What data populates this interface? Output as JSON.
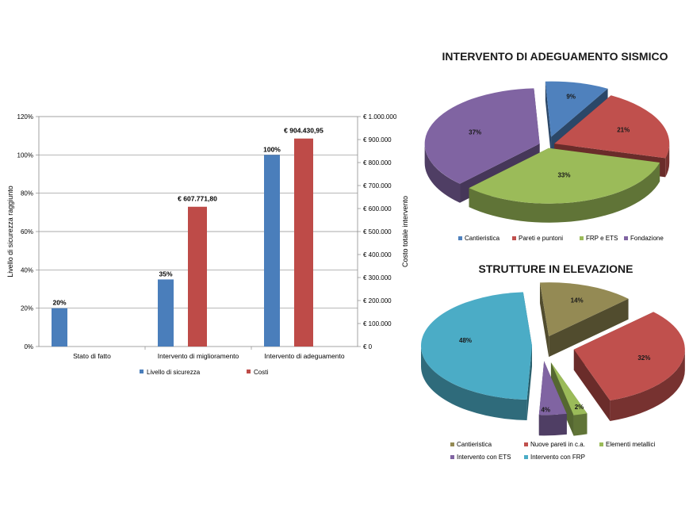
{
  "chart_data": [
    {
      "type": "bar",
      "categories": [
        "Stato di fatto",
        "Intervento di miglioramento",
        "Intervento di adeguamento"
      ],
      "series": [
        {
          "name": "Livello di sicurezza",
          "axis": "left",
          "values": [
            20,
            35,
            100
          ],
          "labels": [
            "20%",
            "35%",
            "100%"
          ],
          "color": "#4a7ebb"
        },
        {
          "name": "Costi",
          "axis": "right",
          "values": [
            0,
            607771.8,
            904430.95
          ],
          "labels": [
            "",
            "€ 607.771,80",
            "€ 904.430,95"
          ],
          "color": "#be4b48"
        }
      ],
      "ylabel": "Livello di sicurezza raggiunto",
      "y2label": "Costo totale intervento",
      "ylim": [
        0,
        120
      ],
      "y2lim": [
        0,
        1000000
      ],
      "yticks": [
        "0%",
        "20%",
        "40%",
        "60%",
        "80%",
        "100%",
        "120%"
      ],
      "y2ticks": [
        "€ 0",
        "€ 100.000",
        "€ 200.000",
        "€ 300.000",
        "€ 400.000",
        "€ 500.000",
        "€ 600.000",
        "€ 700.000",
        "€ 800.000",
        "€ 900.000",
        "€ 1.000.000"
      ],
      "grid": true,
      "legend": "bottom"
    },
    {
      "type": "pie",
      "title": "INTERVENTO DI ADEGUAMENTO SISMICO",
      "slices": [
        {
          "name": "Cantieristica",
          "value": 9,
          "label": "9%",
          "color": "#4f81bd"
        },
        {
          "name": "Pareti e puntoni",
          "value": 21,
          "label": "21%",
          "color": "#c0504d"
        },
        {
          "name": "FRP e ETS",
          "value": 33,
          "label": "33%",
          "color": "#9bbb59"
        },
        {
          "name": "Fondazione",
          "value": 37,
          "label": "37%",
          "color": "#8064a2"
        }
      ],
      "legend": "bottom"
    },
    {
      "type": "pie",
      "title": "STRUTTURE IN ELEVAZIONE",
      "slices": [
        {
          "name": "Cantieristica",
          "value": 14,
          "label": "14%",
          "color": "#948a54"
        },
        {
          "name": "Nuove pareti in c.a.",
          "value": 32,
          "label": "32%",
          "color": "#c0504d"
        },
        {
          "name": "Elementi metallici",
          "value": 2,
          "label": "2%",
          "color": "#9bbb59"
        },
        {
          "name": "Intervento con ETS",
          "value": 4,
          "label": "4%",
          "color": "#8064a2"
        },
        {
          "name": "Intervento con FRP",
          "value": 48,
          "label": "48%",
          "color": "#4bacc6"
        }
      ],
      "legend": "bottom"
    }
  ]
}
